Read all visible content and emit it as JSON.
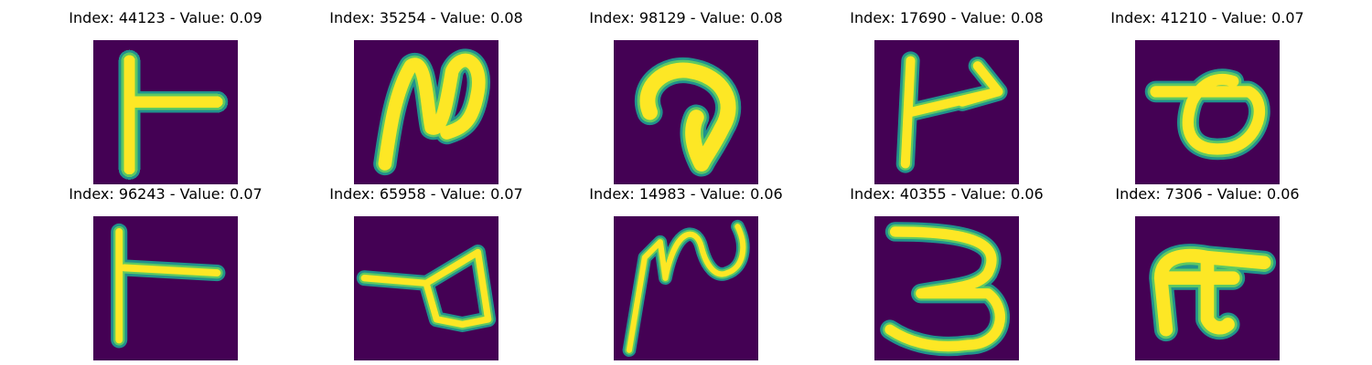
{
  "panels": [
    {
      "title": "Index: 44123 - Value: 0.09",
      "glyph": "T-like stroke"
    },
    {
      "title": "Index: 35254 - Value: 0.08",
      "glyph": "loop-n stroke"
    },
    {
      "title": "Index: 98129 - Value: 0.08",
      "glyph": "hook stroke"
    },
    {
      "title": "Index: 17690 - Value: 0.08",
      "glyph": "arrow stroke"
    },
    {
      "title": "Index: 41210 - Value: 0.07",
      "glyph": "loop stroke"
    },
    {
      "title": "Index: 96243 - Value: 0.07",
      "glyph": "T-like stroke"
    },
    {
      "title": "Index: 65958 - Value: 0.07",
      "glyph": "loop stroke"
    },
    {
      "title": "Index: 14983 - Value: 0.06",
      "glyph": "wave stroke"
    },
    {
      "title": "Index: 40355 - Value: 0.06",
      "glyph": "three-like stroke"
    },
    {
      "title": "Index: 7306 - Value: 0.06",
      "glyph": "n-like stroke"
    }
  ],
  "colors": {
    "background": "#440154",
    "stroke_core": "#fde725",
    "stroke_edge": "#5ec962",
    "stroke_halo": "#21918c"
  }
}
